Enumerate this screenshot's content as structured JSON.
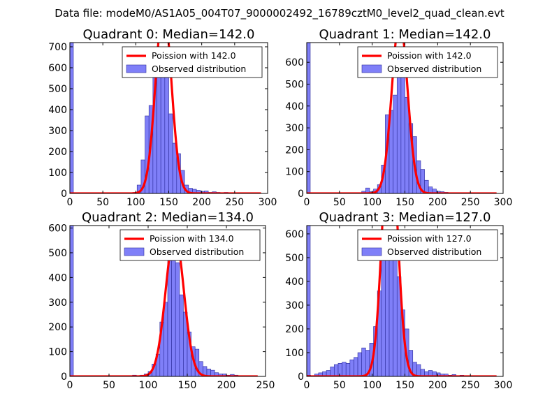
{
  "title": "Data file: modeM0/AS1A05_004T07_9000002492_16789cztM0_level2_quad_clean.evt",
  "colors": {
    "hist_fill": "#7f7ff8",
    "hist_edge": "#2a2a9a",
    "fit_line": "#ff0000"
  },
  "chart_data": [
    {
      "type": "bar",
      "title": "Quadrant 0: Median=142.0",
      "median": 142.0,
      "xlim": [
        0,
        300
      ],
      "ylim": [
        0,
        720
      ],
      "xticks": [
        0,
        50,
        100,
        150,
        200,
        250,
        300
      ],
      "yticks": [
        0,
        100,
        200,
        300,
        400,
        500,
        600,
        700
      ],
      "bin_width": 6,
      "spike": {
        "x": 0,
        "value": 720
      },
      "hist": [
        [
          84,
          2
        ],
        [
          90,
          3
        ],
        [
          96,
          5
        ],
        [
          102,
          40
        ],
        [
          108,
          160
        ],
        [
          114,
          370
        ],
        [
          120,
          420
        ],
        [
          126,
          560
        ],
        [
          132,
          620
        ],
        [
          138,
          600
        ],
        [
          144,
          580
        ],
        [
          150,
          380
        ],
        [
          156,
          240
        ],
        [
          162,
          190
        ],
        [
          168,
          110
        ],
        [
          174,
          40
        ],
        [
          180,
          25
        ],
        [
          186,
          20
        ],
        [
          192,
          15
        ],
        [
          198,
          10
        ],
        [
          204,
          12
        ],
        [
          210,
          5
        ],
        [
          216,
          8
        ],
        [
          222,
          5
        ],
        [
          228,
          3
        ],
        [
          234,
          5
        ],
        [
          240,
          2
        ],
        [
          246,
          3
        ],
        [
          252,
          2
        ],
        [
          258,
          1
        ]
      ],
      "legend": {
        "line": "Poission with 142.0",
        "hist": "Observed distribution",
        "position": "upper right"
      }
    },
    {
      "type": "bar",
      "title": "Quadrant 1: Median=142.0",
      "median": 142.0,
      "xlim": [
        0,
        300
      ],
      "ylim": [
        0,
        690
      ],
      "xticks": [
        0,
        50,
        100,
        150,
        200,
        250,
        300
      ],
      "yticks": [
        0,
        100,
        200,
        300,
        400,
        500,
        600
      ],
      "bin_width": 6,
      "spike": {
        "x": 0,
        "value": 690
      },
      "hist": [
        [
          84,
          10
        ],
        [
          90,
          25
        ],
        [
          96,
          8
        ],
        [
          102,
          20
        ],
        [
          108,
          40
        ],
        [
          114,
          130
        ],
        [
          120,
          360
        ],
        [
          126,
          380
        ],
        [
          132,
          450
        ],
        [
          138,
          550
        ],
        [
          144,
          560
        ],
        [
          150,
          440
        ],
        [
          156,
          320
        ],
        [
          162,
          260
        ],
        [
          168,
          150
        ],
        [
          174,
          110
        ],
        [
          180,
          60
        ],
        [
          186,
          30
        ],
        [
          192,
          20
        ],
        [
          198,
          10
        ],
        [
          204,
          8
        ],
        [
          210,
          5
        ],
        [
          216,
          3
        ],
        [
          222,
          2
        ]
      ],
      "legend": {
        "line": "Poission with 142.0",
        "hist": "Observed distribution",
        "position": "upper right"
      }
    },
    {
      "type": "bar",
      "title": "Quadrant 2: Median=134.0",
      "median": 134.0,
      "xlim": [
        0,
        250
      ],
      "ylim": [
        0,
        610
      ],
      "xticks": [
        0,
        50,
        100,
        150,
        200,
        250
      ],
      "yticks": [
        0,
        100,
        200,
        300,
        400,
        500,
        600
      ],
      "bin_width": 5,
      "spike": {
        "x": 0,
        "value": 610
      },
      "hist": [
        [
          80,
          5
        ],
        [
          85,
          3
        ],
        [
          90,
          5
        ],
        [
          95,
          10
        ],
        [
          100,
          20
        ],
        [
          105,
          50
        ],
        [
          110,
          90
        ],
        [
          115,
          220
        ],
        [
          120,
          300
        ],
        [
          125,
          470
        ],
        [
          130,
          500
        ],
        [
          135,
          460
        ],
        [
          140,
          330
        ],
        [
          145,
          260
        ],
        [
          150,
          180
        ],
        [
          155,
          120
        ],
        [
          160,
          110
        ],
        [
          165,
          60
        ],
        [
          170,
          40
        ],
        [
          175,
          30
        ],
        [
          180,
          25
        ],
        [
          185,
          15
        ],
        [
          190,
          10
        ],
        [
          195,
          10
        ],
        [
          200,
          5
        ],
        [
          205,
          8
        ],
        [
          210,
          5
        ],
        [
          215,
          3
        ]
      ],
      "legend": {
        "line": "Poission with 134.0",
        "hist": "Observed distribution",
        "position": "upper right"
      }
    },
    {
      "type": "bar",
      "title": "Quadrant 3: Median=127.0",
      "median": 127.0,
      "xlim": [
        0,
        300
      ],
      "ylim": [
        0,
        635
      ],
      "xticks": [
        0,
        50,
        100,
        150,
        200,
        250,
        300
      ],
      "yticks": [
        0,
        100,
        200,
        300,
        400,
        500,
        600
      ],
      "bin_width": 6,
      "spike": {
        "x": 0,
        "value": 635
      },
      "hist": [
        [
          0,
          5
        ],
        [
          6,
          3
        ],
        [
          12,
          10
        ],
        [
          18,
          15
        ],
        [
          24,
          20
        ],
        [
          30,
          25
        ],
        [
          36,
          40
        ],
        [
          42,
          50
        ],
        [
          48,
          55
        ],
        [
          54,
          60
        ],
        [
          60,
          55
        ],
        [
          66,
          70
        ],
        [
          72,
          80
        ],
        [
          78,
          100
        ],
        [
          84,
          120
        ],
        [
          90,
          110
        ],
        [
          96,
          140
        ],
        [
          102,
          210
        ],
        [
          108,
          360
        ],
        [
          114,
          560
        ],
        [
          120,
          580
        ],
        [
          126,
          540
        ],
        [
          132,
          600
        ],
        [
          138,
          420
        ],
        [
          144,
          280
        ],
        [
          150,
          200
        ],
        [
          156,
          110
        ],
        [
          162,
          60
        ],
        [
          168,
          50
        ],
        [
          174,
          30
        ],
        [
          180,
          20
        ],
        [
          186,
          25
        ],
        [
          192,
          20
        ],
        [
          198,
          15
        ],
        [
          204,
          10
        ],
        [
          210,
          10
        ],
        [
          216,
          5
        ],
        [
          222,
          8
        ],
        [
          228,
          3
        ],
        [
          234,
          5
        ],
        [
          240,
          3
        ],
        [
          246,
          2
        ]
      ],
      "legend": {
        "line": "Poission with 127.0",
        "hist": "Observed distribution",
        "position": "upper right"
      }
    }
  ]
}
